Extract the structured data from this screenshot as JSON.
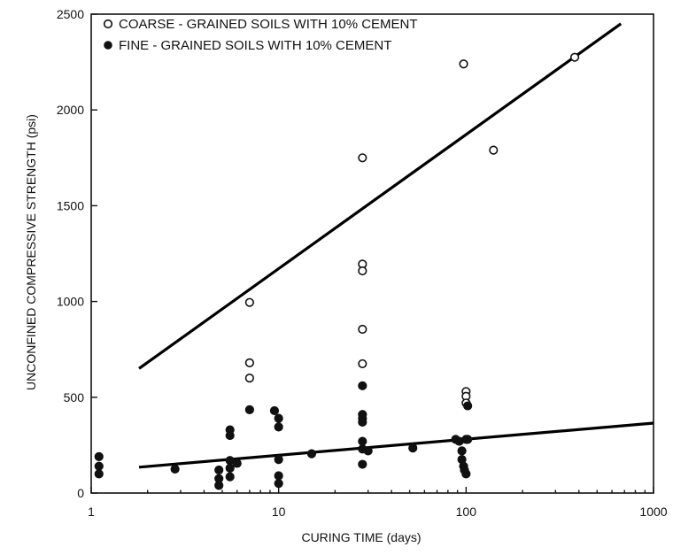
{
  "chart_data": {
    "type": "scatter",
    "xlabel": "CURING TIME (days)",
    "ylabel": "UNCONFINED COMPRESSIVE STRENGTH (psi)",
    "x_scale": "log",
    "xlim": [
      1,
      1000
    ],
    "ylim": [
      0,
      2500
    ],
    "x_ticks": [
      1,
      10,
      100,
      1000
    ],
    "x_tick_labels": [
      "1",
      "10",
      "100",
      "1000"
    ],
    "y_ticks": [
      0,
      500,
      1000,
      1500,
      2000,
      2500
    ],
    "y_tick_labels": [
      "0",
      "500",
      "1000",
      "1500",
      "2000",
      "2500"
    ],
    "grid": false,
    "legend_position": "top-left",
    "series": [
      {
        "name": "COARSE - GRAINED SOILS WITH 10% CEMENT",
        "marker": "open-circle",
        "points": [
          [
            7,
            995
          ],
          [
            7,
            680
          ],
          [
            7,
            600
          ],
          [
            28,
            1195
          ],
          [
            28,
            1160
          ],
          [
            28,
            855
          ],
          [
            28,
            675
          ],
          [
            28,
            1750
          ],
          [
            97,
            2240
          ],
          [
            140,
            1790
          ],
          [
            380,
            2275
          ],
          [
            100,
            530
          ],
          [
            100,
            505
          ],
          [
            100,
            470
          ]
        ],
        "trendline": [
          [
            1.8,
            650
          ],
          [
            670,
            2450
          ]
        ]
      },
      {
        "name": "FINE - GRAINED SOILS WITH 10% CEMENT",
        "marker": "filled-circle",
        "points": [
          [
            1.1,
            190
          ],
          [
            1.1,
            140
          ],
          [
            1.1,
            100
          ],
          [
            2.8,
            125
          ],
          [
            4.8,
            120
          ],
          [
            4.8,
            75
          ],
          [
            4.8,
            40
          ],
          [
            5.5,
            330
          ],
          [
            5.5,
            300
          ],
          [
            5.5,
            170
          ],
          [
            5.5,
            130
          ],
          [
            5.5,
            85
          ],
          [
            6,
            155
          ],
          [
            7,
            435
          ],
          [
            9.5,
            430
          ],
          [
            10,
            390
          ],
          [
            10,
            345
          ],
          [
            10,
            175
          ],
          [
            10,
            90
          ],
          [
            10,
            50
          ],
          [
            15,
            205
          ],
          [
            28,
            560
          ],
          [
            28,
            410
          ],
          [
            28,
            390
          ],
          [
            28,
            370
          ],
          [
            28,
            270
          ],
          [
            28,
            230
          ],
          [
            28,
            150
          ],
          [
            30,
            220
          ],
          [
            52,
            235
          ],
          [
            88,
            280
          ],
          [
            92,
            270
          ],
          [
            95,
            220
          ],
          [
            95,
            175
          ],
          [
            97,
            140
          ],
          [
            98,
            120
          ],
          [
            100,
            280
          ],
          [
            100,
            100
          ],
          [
            102,
            455
          ],
          [
            102,
            280
          ]
        ],
        "trendline": [
          [
            1.8,
            135
          ],
          [
            1000,
            365
          ]
        ]
      }
    ]
  }
}
